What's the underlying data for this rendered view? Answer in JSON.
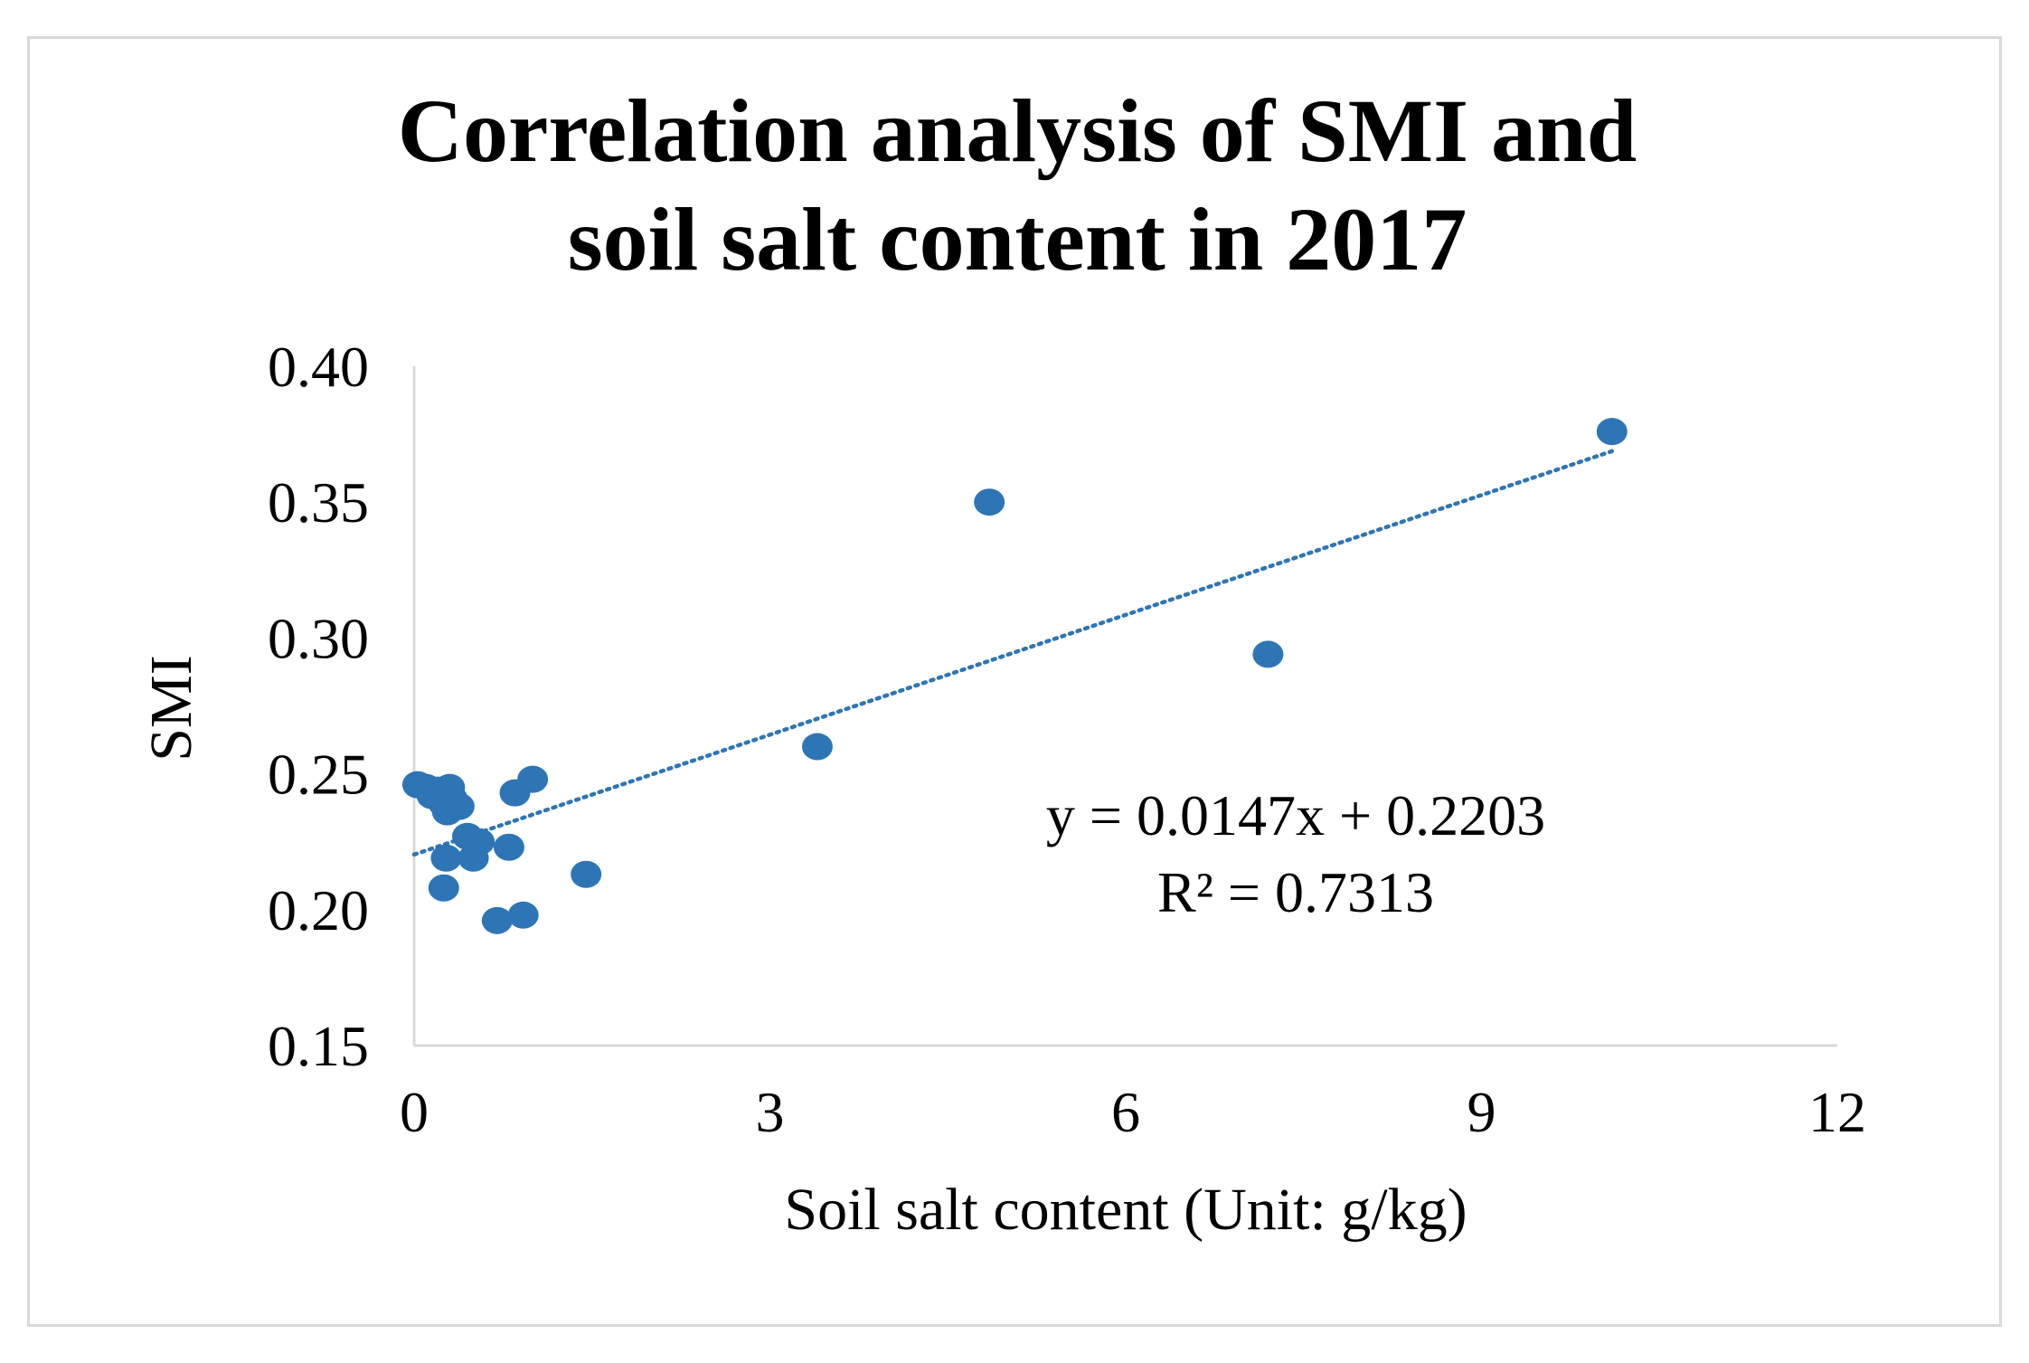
{
  "chart_data": {
    "type": "scatter",
    "title_lines": [
      "Correlation analysis of SMI and",
      "soil salt content in 2017"
    ],
    "xlabel": "Soil salt content (Unit: g/kg)",
    "ylabel": "SMI",
    "xlim": [
      0,
      12
    ],
    "ylim": [
      0.15,
      0.4
    ],
    "xticks": [
      0,
      3,
      6,
      9,
      12
    ],
    "xtick_labels": [
      "0",
      "3",
      "6",
      "9",
      "12"
    ],
    "yticks": [
      0.15,
      0.2,
      0.25,
      0.3,
      0.35,
      0.4
    ],
    "ytick_labels": [
      "0.15",
      "0.20",
      "0.25",
      "0.30",
      "0.35",
      "0.40"
    ],
    "grid": false,
    "point_color": "#2e75b6",
    "trendline": {
      "type": "linear",
      "slope": 0.0147,
      "intercept": 0.2203,
      "x_range": [
        0,
        10.1
      ],
      "style": "dotted",
      "color": "#2e75b6",
      "equation_label": "y = 0.0147x  + 0.2203",
      "r2_label": "R² = 0.7313"
    },
    "points": [
      {
        "x": 0.03,
        "y": 0.246
      },
      {
        "x": 0.1,
        "y": 0.245
      },
      {
        "x": 0.15,
        "y": 0.242
      },
      {
        "x": 0.2,
        "y": 0.244
      },
      {
        "x": 0.25,
        "y": 0.239
      },
      {
        "x": 0.3,
        "y": 0.245
      },
      {
        "x": 0.32,
        "y": 0.241
      },
      {
        "x": 0.38,
        "y": 0.238
      },
      {
        "x": 0.28,
        "y": 0.236
      },
      {
        "x": 0.45,
        "y": 0.227
      },
      {
        "x": 0.55,
        "y": 0.225
      },
      {
        "x": 0.5,
        "y": 0.219
      },
      {
        "x": 0.27,
        "y": 0.219
      },
      {
        "x": 0.8,
        "y": 0.223
      },
      {
        "x": 0.25,
        "y": 0.208
      },
      {
        "x": 0.85,
        "y": 0.243
      },
      {
        "x": 1.0,
        "y": 0.248
      },
      {
        "x": 1.45,
        "y": 0.213
      },
      {
        "x": 0.7,
        "y": 0.196
      },
      {
        "x": 0.92,
        "y": 0.198
      },
      {
        "x": 3.4,
        "y": 0.26
      },
      {
        "x": 4.85,
        "y": 0.35
      },
      {
        "x": 7.2,
        "y": 0.294
      },
      {
        "x": 10.1,
        "y": 0.376
      }
    ]
  }
}
